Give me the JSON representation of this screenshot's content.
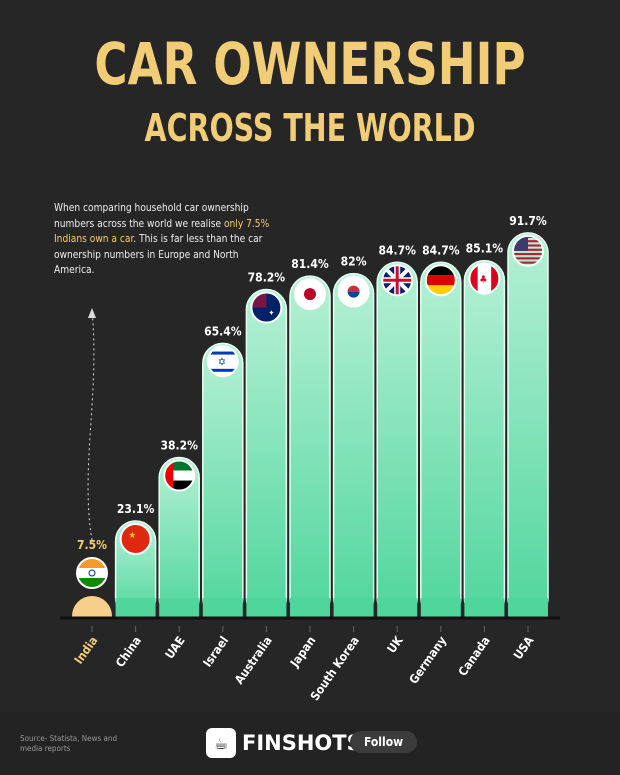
{
  "title": "CAR OWNERSHIP",
  "subtitle": "ACROSS THE WORLD",
  "note": {
    "pre": "When comparing household car ownership numbers across the world we realise ",
    "highlight": "only 7.5% Indians own a car",
    "post": ". This is far less than the car ownership numbers in Europe and North America."
  },
  "chart_data": {
    "type": "bar",
    "categories": [
      "India",
      "China",
      "UAE",
      "Israel",
      "Australia",
      "Japan",
      "South Korea",
      "UK",
      "Germany",
      "Canada",
      "USA"
    ],
    "values": [
      7.5,
      23.1,
      38.2,
      65.4,
      78.2,
      81.4,
      82,
      84.7,
      84.7,
      85.1,
      91.7
    ],
    "labels": [
      "7.5%",
      "23.1%",
      "38.2%",
      "65.4%",
      "78.2%",
      "81.4%",
      "82%",
      "84.7%",
      "84.7%",
      "85.1%",
      "91.7%"
    ],
    "ylim": [
      0,
      100
    ],
    "colors": {
      "bar": "#5fdca8",
      "highlight": "#f6cf8a",
      "title": "#f2cd78"
    },
    "flags": [
      "india-flag-icon",
      "china-flag-icon",
      "uae-flag-icon",
      "israel-flag-icon",
      "australia-flag-icon",
      "japan-flag-icon",
      "south-korea-flag-icon",
      "uk-flag-icon",
      "germany-flag-icon",
      "canada-flag-icon",
      "usa-flag-icon"
    ]
  },
  "footer": {
    "source": "Source- Statista, News and media reports",
    "brand": "FINSHOTS",
    "follow": "Follow"
  }
}
